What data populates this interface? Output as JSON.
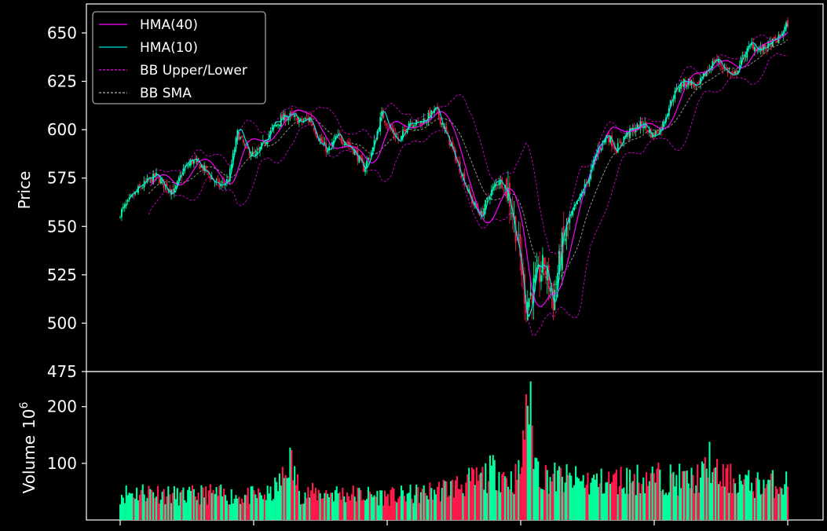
{
  "chart_data": [
    {
      "type": "candlestick",
      "ylabel": "Price",
      "ylim": [
        475,
        665
      ],
      "yticks": [
        475,
        500,
        525,
        550,
        575,
        600,
        625,
        650
      ],
      "legend": {
        "placement": "top-left",
        "entries": [
          {
            "label": "HMA(40)",
            "color": "#ff00ff",
            "style": "solid"
          },
          {
            "label": "HMA(10)",
            "color": "#00e5e5",
            "style": "solid"
          },
          {
            "label": "BB Upper/Lower",
            "color": "#ff00ff",
            "style": "dashed"
          },
          {
            "label": "BB SMA",
            "color": "#b0b0b0",
            "style": "dashed"
          }
        ]
      },
      "close_keypoints": [
        [
          0,
          557
        ],
        [
          6,
          563
        ],
        [
          12,
          569
        ],
        [
          18,
          573
        ],
        [
          24,
          576
        ],
        [
          30,
          571
        ],
        [
          36,
          568
        ],
        [
          42,
          579
        ],
        [
          48,
          584
        ],
        [
          54,
          581
        ],
        [
          60,
          576
        ],
        [
          66,
          571
        ],
        [
          72,
          574
        ],
        [
          78,
          598
        ],
        [
          84,
          590
        ],
        [
          90,
          586
        ],
        [
          96,
          594
        ],
        [
          102,
          601
        ],
        [
          108,
          606
        ],
        [
          114,
          607
        ],
        [
          120,
          604
        ],
        [
          126,
          606
        ],
        [
          132,
          596
        ],
        [
          138,
          589
        ],
        [
          144,
          596
        ],
        [
          150,
          594
        ],
        [
          156,
          589
        ],
        [
          162,
          580
        ],
        [
          168,
          590
        ],
        [
          174,
          608
        ],
        [
          180,
          600
        ],
        [
          186,
          594
        ],
        [
          192,
          604
        ],
        [
          198,
          603
        ],
        [
          204,
          606
        ],
        [
          210,
          610
        ],
        [
          216,
          600
        ],
        [
          222,
          588
        ],
        [
          228,
          576
        ],
        [
          234,
          563
        ],
        [
          240,
          556
        ],
        [
          246,
          567
        ],
        [
          252,
          574
        ],
        [
          258,
          568
        ],
        [
          264,
          545
        ],
        [
          270,
          510
        ],
        [
          276,
          520
        ],
        [
          282,
          530
        ],
        [
          288,
          512
        ],
        [
          294,
          540
        ],
        [
          300,
          555
        ],
        [
          306,
          565
        ],
        [
          312,
          576
        ],
        [
          318,
          590
        ],
        [
          324,
          597
        ],
        [
          330,
          590
        ],
        [
          336,
          597
        ],
        [
          342,
          600
        ],
        [
          348,
          603
        ],
        [
          354,
          597
        ],
        [
          360,
          601
        ],
        [
          366,
          614
        ],
        [
          372,
          623
        ],
        [
          378,
          625
        ],
        [
          384,
          622
        ],
        [
          390,
          630
        ],
        [
          396,
          636
        ],
        [
          402,
          632
        ],
        [
          408,
          627
        ],
        [
          414,
          637
        ],
        [
          420,
          644
        ],
        [
          426,
          641
        ],
        [
          432,
          644
        ],
        [
          438,
          647
        ],
        [
          444,
          655
        ]
      ],
      "ma_short_name": "HMA(10)",
      "ma_long_name": "HMA(40)",
      "bb_sma_name": "BB SMA",
      "bb_band_name": "BB Upper/Lower"
    },
    {
      "type": "bar",
      "ylabel": "Volume",
      "yunit": "10",
      "yunit_exp": "6",
      "ylim": [
        0,
        262
      ],
      "yticks": [
        100,
        200
      ],
      "volume_keypoints": [
        [
          0,
          50
        ],
        [
          20,
          55
        ],
        [
          40,
          45
        ],
        [
          60,
          50
        ],
        [
          80,
          45
        ],
        [
          100,
          48
        ],
        [
          110,
          85
        ],
        [
          112,
          120
        ],
        [
          120,
          50
        ],
        [
          140,
          52
        ],
        [
          160,
          48
        ],
        [
          180,
          45
        ],
        [
          200,
          50
        ],
        [
          220,
          62
        ],
        [
          240,
          78
        ],
        [
          250,
          95
        ],
        [
          260,
          75
        ],
        [
          265,
          85
        ],
        [
          268,
          130
        ],
        [
          270,
          245
        ],
        [
          272,
          220
        ],
        [
          274,
          165
        ],
        [
          276,
          115
        ],
        [
          280,
          85
        ],
        [
          300,
          75
        ],
        [
          320,
          72
        ],
        [
          340,
          78
        ],
        [
          360,
          80
        ],
        [
          380,
          75
        ],
        [
          390,
          90
        ],
        [
          392,
          120
        ],
        [
          395,
          85
        ],
        [
          420,
          68
        ],
        [
          444,
          70
        ]
      ],
      "up_color": "#00ff9f",
      "down_color": "#ff1a4b"
    }
  ]
}
